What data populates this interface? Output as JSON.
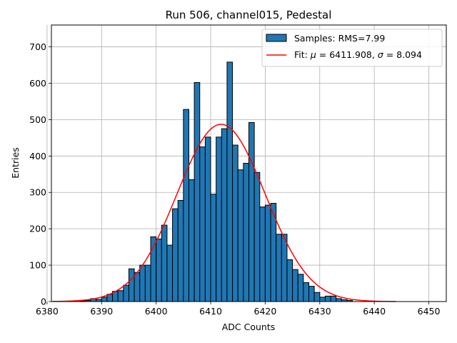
{
  "chart_data": {
    "type": "bar",
    "title": "Run 506, channel015, Pedestal",
    "xlabel": "ADC Counts",
    "ylabel": "Entries",
    "xlim": [
      6380.8,
      6453.2
    ],
    "ylim": [
      0,
      760
    ],
    "xticks": [
      6380,
      6390,
      6400,
      6410,
      6420,
      6430,
      6440,
      6450
    ],
    "yticks": [
      0,
      100,
      200,
      300,
      400,
      500,
      600,
      700
    ],
    "grid": true,
    "legend_position": "top-right",
    "colors": {
      "bars": "#1f77b4",
      "edge": "#000000",
      "fit": "#ff0000"
    },
    "histogram": {
      "name": "Samples: RMS=7.99",
      "bin_width": 1,
      "bins": [
        {
          "x": 6386,
          "y": 2
        },
        {
          "x": 6387,
          "y": 3
        },
        {
          "x": 6388,
          "y": 8
        },
        {
          "x": 6389,
          "y": 6
        },
        {
          "x": 6390,
          "y": 12
        },
        {
          "x": 6391,
          "y": 20
        },
        {
          "x": 6392,
          "y": 28
        },
        {
          "x": 6393,
          "y": 30
        },
        {
          "x": 6394,
          "y": 45
        },
        {
          "x": 6395,
          "y": 90
        },
        {
          "x": 6396,
          "y": 80
        },
        {
          "x": 6397,
          "y": 100
        },
        {
          "x": 6398,
          "y": 100
        },
        {
          "x": 6399,
          "y": 178
        },
        {
          "x": 6400,
          "y": 172
        },
        {
          "x": 6401,
          "y": 210
        },
        {
          "x": 6402,
          "y": 155
        },
        {
          "x": 6403,
          "y": 255
        },
        {
          "x": 6404,
          "y": 278
        },
        {
          "x": 6405,
          "y": 528
        },
        {
          "x": 6406,
          "y": 335
        },
        {
          "x": 6407,
          "y": 602
        },
        {
          "x": 6408,
          "y": 425
        },
        {
          "x": 6409,
          "y": 452
        },
        {
          "x": 6410,
          "y": 295
        },
        {
          "x": 6411,
          "y": 452
        },
        {
          "x": 6412,
          "y": 475
        },
        {
          "x": 6413,
          "y": 658
        },
        {
          "x": 6414,
          "y": 430
        },
        {
          "x": 6415,
          "y": 362
        },
        {
          "x": 6416,
          "y": 380
        },
        {
          "x": 6417,
          "y": 492
        },
        {
          "x": 6418,
          "y": 355
        },
        {
          "x": 6419,
          "y": 260
        },
        {
          "x": 6420,
          "y": 265
        },
        {
          "x": 6421,
          "y": 270
        },
        {
          "x": 6422,
          "y": 185
        },
        {
          "x": 6423,
          "y": 185
        },
        {
          "x": 6424,
          "y": 115
        },
        {
          "x": 6425,
          "y": 88
        },
        {
          "x": 6426,
          "y": 75
        },
        {
          "x": 6427,
          "y": 52
        },
        {
          "x": 6428,
          "y": 42
        },
        {
          "x": 6429,
          "y": 25
        },
        {
          "x": 6430,
          "y": 12
        },
        {
          "x": 6431,
          "y": 15
        },
        {
          "x": 6432,
          "y": 15
        },
        {
          "x": 6433,
          "y": 8
        },
        {
          "x": 6434,
          "y": 5
        },
        {
          "x": 6435,
          "y": 3
        }
      ]
    },
    "fit": {
      "name_prefix": "Fit: ",
      "mu_symbol": "μ",
      "mu_text": " = 6411.908, ",
      "sigma_symbol": "σ",
      "sigma_text": " = 8.094",
      "mu": 6411.908,
      "sigma": 8.094,
      "amplitude": 487,
      "x_range": [
        6381,
        6444
      ]
    }
  }
}
